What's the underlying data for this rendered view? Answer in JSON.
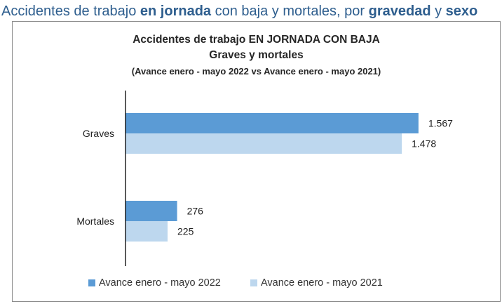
{
  "heading": {
    "part1": "Accidentes de trabajo ",
    "part2": "en jornada",
    "part3": " con baja y mortales, por ",
    "part4": "gravedad",
    "part5": " y ",
    "part6": "sexo"
  },
  "chart_data": {
    "type": "bar",
    "orientation": "horizontal",
    "title": "Accidentes de trabajo EN JORNADA CON BAJA",
    "subtitle": "Graves y mortales",
    "subtitle2": "(Avance enero - mayo 2022 vs Avance enero - mayo 2021)",
    "categories": [
      "Graves",
      "Mortales"
    ],
    "series": [
      {
        "name": "Avance enero - mayo 2022",
        "color": "#5b9bd5",
        "values": [
          1567,
          276
        ],
        "labels": [
          "1.567",
          "276"
        ]
      },
      {
        "name": "Avance enero - mayo 2021",
        "color": "#bdd7ee",
        "values": [
          1478,
          225
        ],
        "labels": [
          "1.478",
          "225"
        ]
      }
    ],
    "xlim": [
      0,
      1650
    ],
    "grid": false,
    "legend_position": "bottom"
  }
}
